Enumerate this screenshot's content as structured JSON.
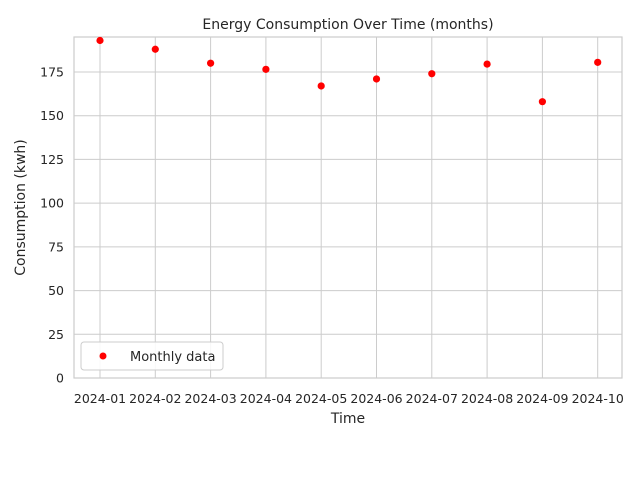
{
  "chart_data": {
    "type": "scatter",
    "title": "Energy Consumption Over Time (months)",
    "xlabel": "Time",
    "ylabel": "Consumption (kwh)",
    "categories": [
      "2024-01",
      "2024-02",
      "2024-03",
      "2024-04",
      "2024-05",
      "2024-06",
      "2024-07",
      "2024-08",
      "2024-09",
      "2024-10"
    ],
    "series": [
      {
        "name": "Monthly data",
        "color": "#ff0000",
        "values": [
          193,
          188,
          180,
          176.5,
          167,
          171,
          174,
          179.5,
          158,
          180.5
        ]
      }
    ],
    "ylim": [
      0,
      195
    ],
    "yticks": [
      0,
      25,
      50,
      75,
      100,
      125,
      150,
      175
    ],
    "grid": true,
    "legend_position": "lower-left"
  }
}
